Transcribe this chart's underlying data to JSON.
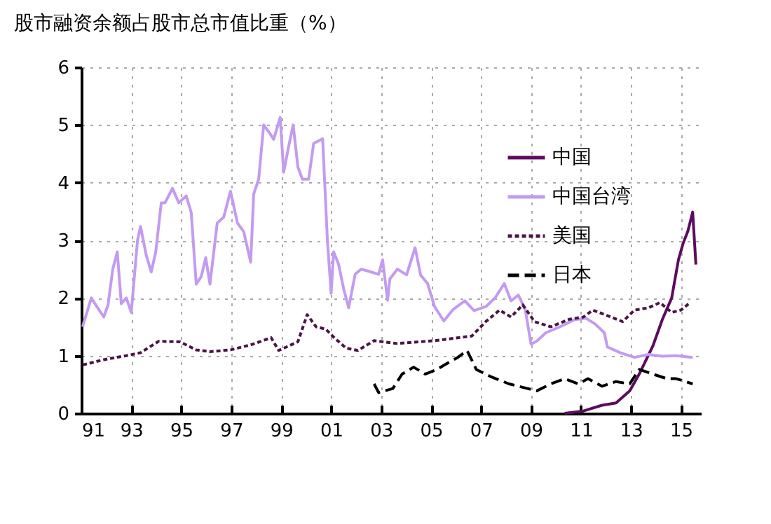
{
  "chart_data": {
    "type": "line",
    "title": "股市融资余额占股市总市值比重（%）",
    "xlim": [
      1991,
      2015.8
    ],
    "ylim": [
      0,
      6
    ],
    "yticks": [
      0,
      1,
      2,
      3,
      4,
      5,
      6
    ],
    "xticks": [
      {
        "value": 1991,
        "label": "91"
      },
      {
        "value": 1993,
        "label": "93"
      },
      {
        "value": 1995,
        "label": "95"
      },
      {
        "value": 1997,
        "label": "97"
      },
      {
        "value": 1999,
        "label": "99"
      },
      {
        "value": 2001,
        "label": "01"
      },
      {
        "value": 2003,
        "label": "03"
      },
      {
        "value": 2005,
        "label": "05"
      },
      {
        "value": 2007,
        "label": "07"
      },
      {
        "value": 2009,
        "label": "09"
      },
      {
        "value": 2011,
        "label": "11"
      },
      {
        "value": 2013,
        "label": "13"
      },
      {
        "value": 2015,
        "label": "15"
      }
    ],
    "grid": true,
    "legend": "top right",
    "series": [
      {
        "name": "中国",
        "color": "#5c0b5e",
        "line_style": "solid",
        "x": [
          2010.35,
          2011.1,
          2011.84,
          2012.4,
          2012.95,
          2013.33,
          2013.88,
          2014.26,
          2014.63,
          2014.9,
          2015.09,
          2015.28,
          2015.47,
          2015.6
        ],
        "values": [
          0,
          0.04,
          0.14,
          0.18,
          0.39,
          0.68,
          1.17,
          1.63,
          2.0,
          2.66,
          2.95,
          3.16,
          3.49,
          2.58
        ]
      },
      {
        "name": "中国台湾",
        "color": "#c39bf0",
        "line_style": "solid",
        "x": [
          1991.05,
          1991.4,
          1991.7,
          1991.9,
          1992.07,
          1992.26,
          1992.44,
          1992.6,
          1992.8,
          1993.0,
          1993.25,
          1993.37,
          1993.6,
          1993.8,
          1993.98,
          1994.2,
          1994.35,
          1994.65,
          1994.9,
          1995.2,
          1995.4,
          1995.6,
          1995.8,
          1995.98,
          1996.15,
          1996.44,
          1996.7,
          1996.97,
          1997.25,
          1997.5,
          1997.78,
          1997.9,
          1998.1,
          1998.3,
          1998.55,
          1998.7,
          1998.96,
          1999.1,
          1999.3,
          1999.48,
          1999.67,
          1999.85,
          2000.1,
          2000.3,
          2000.66,
          2000.85,
          2001.0,
          2001.1,
          2001.3,
          2001.5,
          2001.7,
          2001.96,
          2002.2,
          2002.6,
          2002.9,
          2003.06,
          2003.26,
          2003.35,
          2003.65,
          2004.02,
          2004.36,
          2004.58,
          2004.86,
          2005.14,
          2005.51,
          2005.88,
          2006.35,
          2006.72,
          2007.19,
          2007.56,
          2007.93,
          2008.2,
          2008.49,
          2008.77,
          2009.0,
          2009.23,
          2009.6,
          2010.16,
          2010.72,
          2011.19,
          2011.56,
          2011.93,
          2012.06,
          2012.58,
          2013.14,
          2013.7,
          2014.26,
          2014.81,
          2015.47
        ],
        "values": [
          1.5,
          2.0,
          1.8,
          1.67,
          1.88,
          2.5,
          2.8,
          1.9,
          2.0,
          1.75,
          3.0,
          3.24,
          2.74,
          2.45,
          2.8,
          3.65,
          3.65,
          3.9,
          3.65,
          3.77,
          3.48,
          2.24,
          2.37,
          2.7,
          2.24,
          3.3,
          3.4,
          3.85,
          3.3,
          3.15,
          2.62,
          3.8,
          4.06,
          5.0,
          4.85,
          4.75,
          5.13,
          4.18,
          4.63,
          5.0,
          4.27,
          4.06,
          4.06,
          4.68,
          4.76,
          3.0,
          2.08,
          2.8,
          2.58,
          2.16,
          1.83,
          2.41,
          2.5,
          2.45,
          2.41,
          2.66,
          1.96,
          2.33,
          2.5,
          2.4,
          2.87,
          2.4,
          2.25,
          1.85,
          1.6,
          1.8,
          1.95,
          1.78,
          1.85,
          2.0,
          2.25,
          1.95,
          2.05,
          1.8,
          1.2,
          1.25,
          1.4,
          1.5,
          1.62,
          1.65,
          1.55,
          1.4,
          1.15,
          1.05,
          0.97,
          1.02,
          0.99,
          1.0,
          0.97
        ]
      },
      {
        "name": "美国",
        "color": "#4a1545",
        "line_style": "dotted",
        "x": [
          1991.06,
          1991.9,
          1992.8,
          1993.37,
          1994.1,
          1994.95,
          1995.6,
          1996.15,
          1996.98,
          1997.8,
          1998.6,
          1998.9,
          1999.67,
          2000.04,
          2000.4,
          2000.78,
          2001.15,
          2001.6,
          2002.07,
          2002.72,
          2003.65,
          2005.14,
          2006.63,
          2007.19,
          2007.74,
          2008.2,
          2008.67,
          2009.14,
          2009.79,
          2010.53,
          2011.1,
          2011.47,
          2012.2,
          2012.67,
          2013.14,
          2013.7,
          2014.16,
          2014.63,
          2015.0,
          2015.37
        ],
        "values": [
          0.84,
          0.93,
          1.0,
          1.05,
          1.25,
          1.24,
          1.1,
          1.07,
          1.1,
          1.19,
          1.31,
          1.09,
          1.24,
          1.71,
          1.5,
          1.46,
          1.3,
          1.13,
          1.09,
          1.26,
          1.21,
          1.26,
          1.34,
          1.59,
          1.79,
          1.67,
          1.88,
          1.59,
          1.5,
          1.63,
          1.67,
          1.79,
          1.67,
          1.59,
          1.79,
          1.83,
          1.92,
          1.75,
          1.79,
          1.92
        ]
      },
      {
        "name": "日本",
        "color": "#000000",
        "line_style": "dashed",
        "x": [
          2002.72,
          2002.9,
          2003.47,
          2003.84,
          2004.3,
          2004.77,
          2005.23,
          2005.7,
          2006.07,
          2006.44,
          2006.81,
          2007.37,
          2008.12,
          2008.86,
          2009.23,
          2009.79,
          2010.35,
          2010.9,
          2011.28,
          2011.84,
          2012.4,
          2012.95,
          2013.33,
          2013.88,
          2014.44,
          2014.81,
          2015.19,
          2015.47
        ],
        "values": [
          0.51,
          0.36,
          0.43,
          0.68,
          0.8,
          0.68,
          0.76,
          0.88,
          0.97,
          1.09,
          0.76,
          0.64,
          0.51,
          0.43,
          0.39,
          0.51,
          0.6,
          0.51,
          0.6,
          0.47,
          0.55,
          0.51,
          0.76,
          0.68,
          0.6,
          0.6,
          0.55,
          0.51
        ]
      }
    ]
  }
}
